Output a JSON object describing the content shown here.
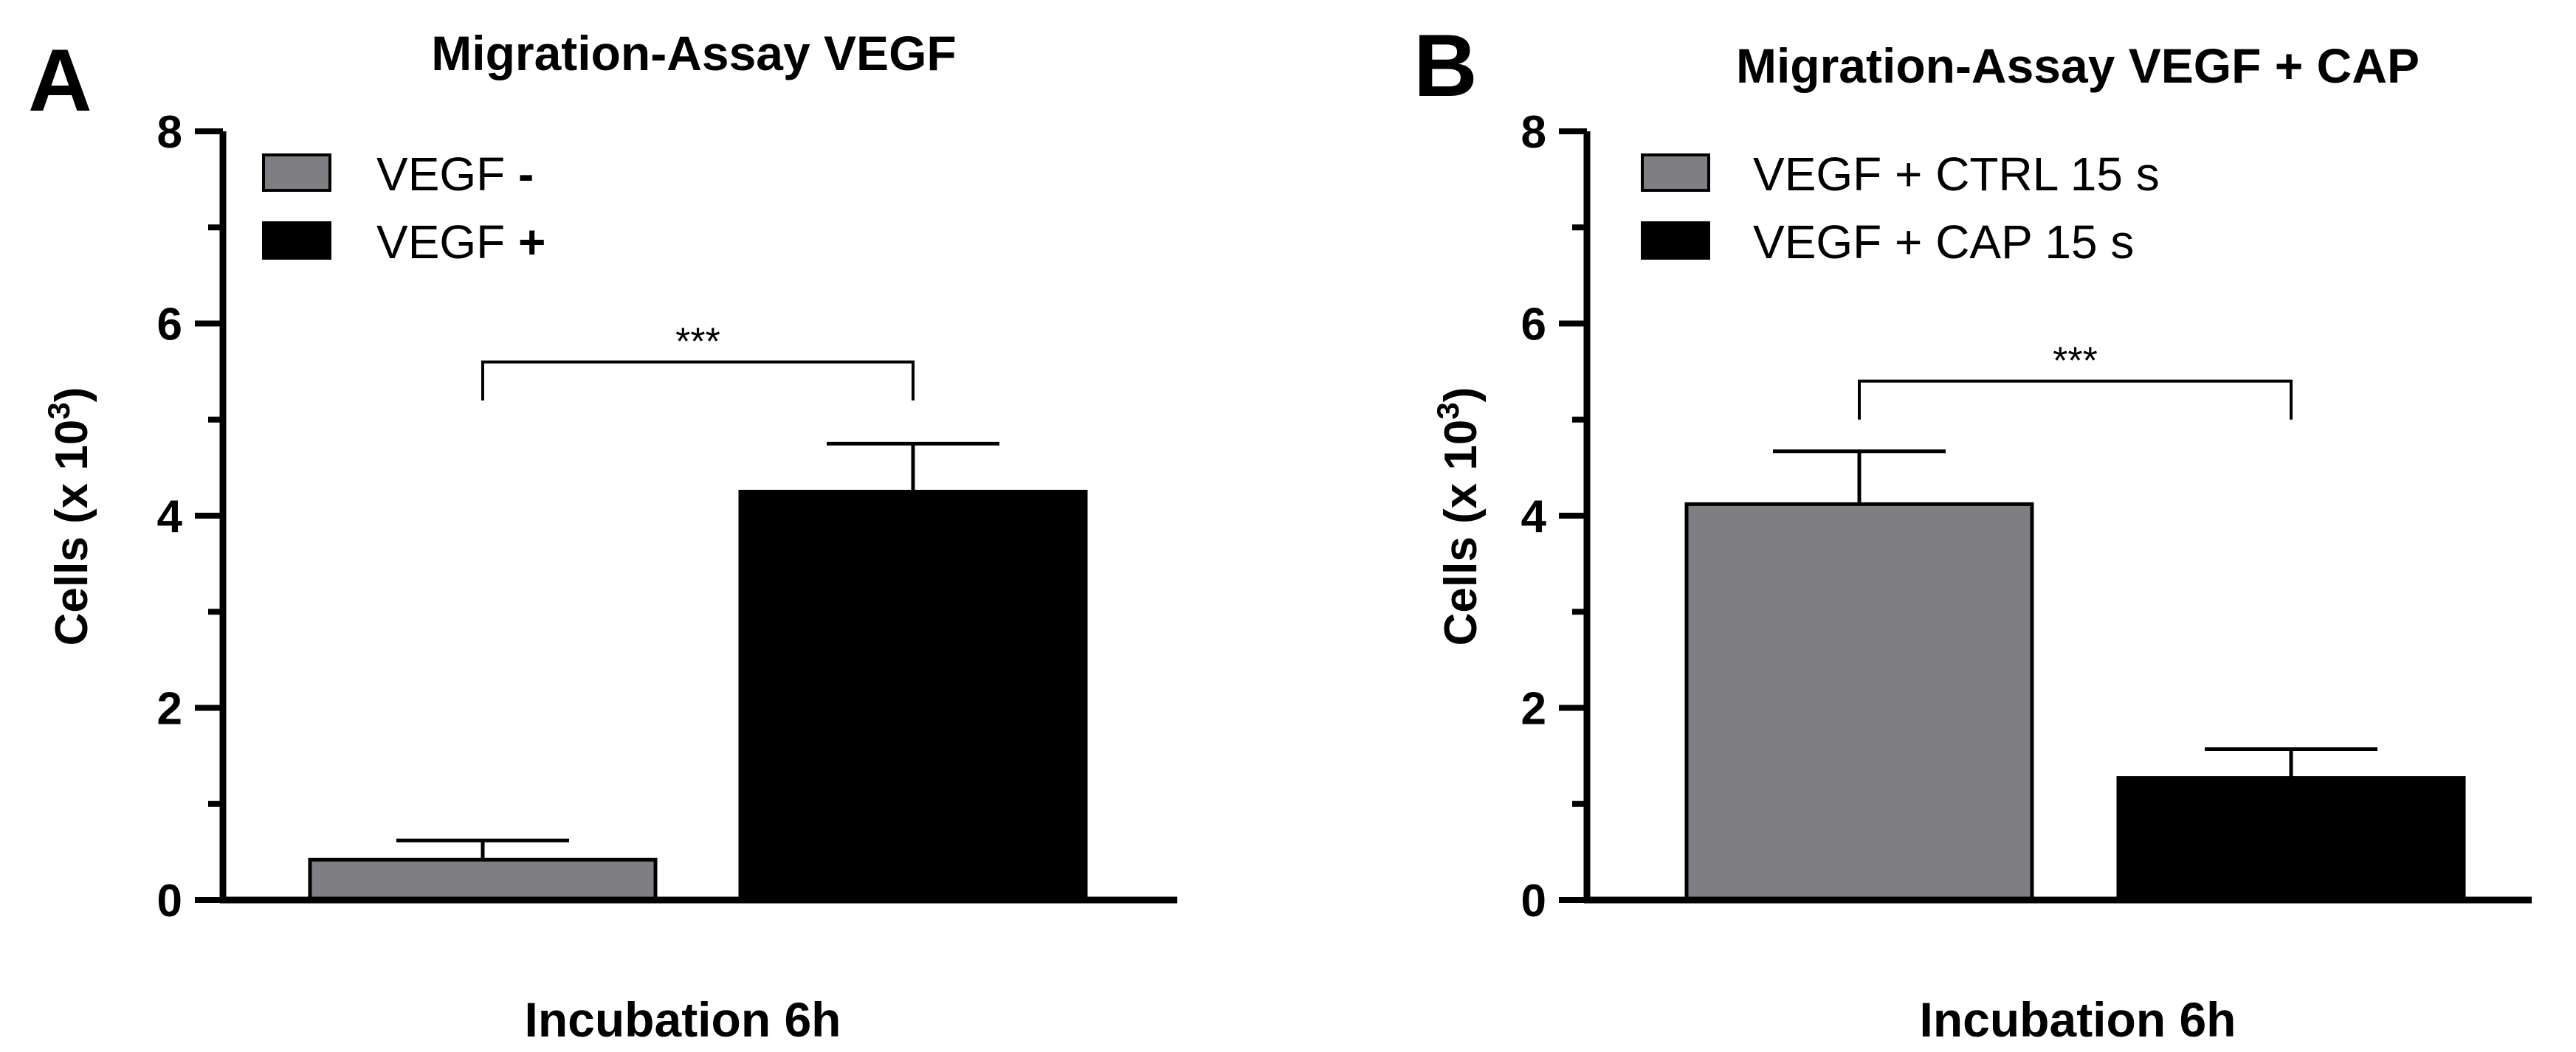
{
  "chart_data": [
    {
      "panel_label": "A",
      "type": "bar",
      "title": "Migration-Assay VEGF",
      "xlabel": "Incubation 6h",
      "ylabel_text": "Cells (x 10",
      "ylabel_exponent": "3",
      "ylabel_close": ")",
      "ylim": [
        0,
        8
      ],
      "yticks": [
        "0",
        "2",
        "4",
        "6",
        "8"
      ],
      "categories": [
        "VEGF -",
        "VEGF +"
      ],
      "legend": [
        {
          "text": "VEGF ",
          "sign": "-",
          "color": "#7f7f83"
        },
        {
          "text": "VEGF ",
          "sign": "+",
          "color": "#000000"
        }
      ],
      "series": [
        {
          "name": "VEGF -",
          "value": 0.42,
          "error": 0.2,
          "color": "#7f7f83"
        },
        {
          "name": "VEGF +",
          "value": 4.25,
          "error": 0.5,
          "color": "#000000"
        }
      ],
      "significance": {
        "label": "***",
        "from": 0,
        "to": 1,
        "level": 5.6
      }
    },
    {
      "panel_label": "B",
      "type": "bar",
      "title": "Migration-Assay VEGF + CAP",
      "xlabel": "Incubation 6h",
      "ylabel_text": "Cells (x 10",
      "ylabel_exponent": "3",
      "ylabel_close": ")",
      "ylim": [
        0,
        8
      ],
      "yticks": [
        "0",
        "2",
        "4",
        "6",
        "8"
      ],
      "categories": [
        "VEGF + CTRL 15 s",
        "VEGF + CAP 15 s"
      ],
      "legend": [
        {
          "text": "VEGF + CTRL 15 s",
          "sign": "",
          "color": "#7f7f83"
        },
        {
          "text": "VEGF + CAP 15 s",
          "sign": "",
          "color": "#000000"
        }
      ],
      "series": [
        {
          "name": "VEGF + CTRL 15 s",
          "value": 4.12,
          "error": 0.55,
          "color": "#7f7f83"
        },
        {
          "name": "VEGF + CAP 15 s",
          "value": 1.27,
          "error": 0.3,
          "color": "#000000"
        }
      ],
      "significance": {
        "label": "***",
        "from": 0,
        "to": 1,
        "level": 5.4
      }
    }
  ]
}
